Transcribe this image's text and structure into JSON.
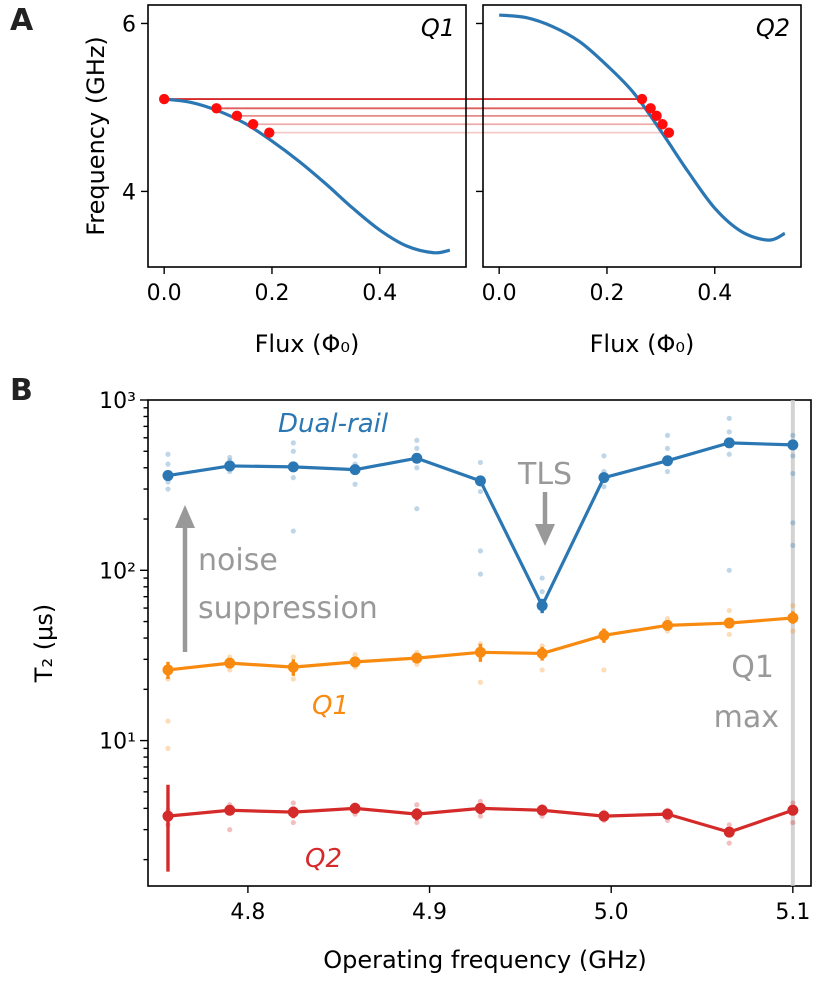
{
  "panel_labels": {
    "a": "A",
    "b": "B"
  },
  "colors": {
    "blue": "#2a77b4",
    "orange": "#f98a10",
    "red": "#d42a29",
    "gray": "#999999",
    "dot": "#ff0d0d"
  },
  "chart_data": [
    {
      "type": "line",
      "panel": "A-left",
      "title": "Q1",
      "xlabel": "Flux (Φ₀)",
      "ylabel": "Frequency (GHz)",
      "xlim": [
        -0.03,
        0.56
      ],
      "ylim": [
        3.1,
        6.22
      ],
      "xticks": [
        0.0,
        0.2,
        0.4
      ],
      "xtick_labels": [
        "0.0",
        "0.2",
        "0.4"
      ],
      "yticks": [
        4,
        6
      ],
      "ytick_labels": [
        "4",
        "6"
      ],
      "curve": {
        "x": [
          0.0,
          0.05,
          0.1,
          0.15,
          0.2,
          0.25,
          0.3,
          0.35,
          0.4,
          0.45,
          0.5,
          0.53
        ],
        "y": [
          5.1,
          5.06,
          4.96,
          4.81,
          4.6,
          4.36,
          4.09,
          3.8,
          3.54,
          3.35,
          3.27,
          3.3
        ]
      },
      "markers": {
        "x": [
          0.0,
          0.097,
          0.135,
          0.165,
          0.195
        ],
        "y": [
          5.1,
          4.99,
          4.9,
          4.8,
          4.7
        ]
      }
    },
    {
      "type": "line",
      "panel": "A-right",
      "title": "Q2",
      "xlabel": "Flux (Φ₀)",
      "xlim": [
        -0.03,
        0.56
      ],
      "ylim": [
        3.1,
        6.22
      ],
      "xticks": [
        0.0,
        0.2,
        0.4
      ],
      "xtick_labels": [
        "0.0",
        "0.2",
        "0.4"
      ],
      "curve": {
        "x": [
          0.0,
          0.05,
          0.1,
          0.15,
          0.2,
          0.25,
          0.3,
          0.35,
          0.4,
          0.45,
          0.5,
          0.53
        ],
        "y": [
          6.1,
          6.07,
          5.96,
          5.78,
          5.5,
          5.17,
          4.72,
          4.24,
          3.8,
          3.52,
          3.42,
          3.5
        ]
      },
      "markers": {
        "x": [
          0.265,
          0.281,
          0.292,
          0.303,
          0.315
        ],
        "y": [
          5.1,
          4.99,
          4.9,
          4.8,
          4.7
        ]
      }
    },
    {
      "type": "line",
      "panel": "B",
      "scale": "log",
      "xlabel": "Operating frequency (GHz)",
      "ylabel": "T₂ (μs)",
      "xlim": [
        4.745,
        5.11
      ],
      "ylim": [
        1.4,
        1000
      ],
      "xticks": [
        4.8,
        4.9,
        5.0,
        5.1
      ],
      "xtick_labels": [
        "4.8",
        "4.9",
        "5.0",
        "5.1"
      ],
      "ytick_labels": [
        "10¹",
        "10²",
        "10³"
      ],
      "x": [
        4.756,
        4.79,
        4.825,
        4.859,
        4.893,
        4.928,
        4.962,
        4.996,
        5.031,
        5.065,
        5.1
      ],
      "series": [
        {
          "name": "Dual-rail",
          "values": [
            360,
            410,
            405,
            390,
            455,
            335,
            62,
            350,
            440,
            560,
            545
          ],
          "err_low": [
            0,
            0,
            0,
            0,
            0,
            0,
            6,
            0,
            0,
            0,
            0
          ],
          "err_high": [
            0,
            0,
            0,
            0,
            0,
            0,
            6,
            0,
            0,
            0,
            0
          ]
        },
        {
          "name": "Q1",
          "values": [
            26,
            28.5,
            27,
            29,
            30.5,
            33,
            32.5,
            41.5,
            47.5,
            49,
            52.5
          ],
          "err_low": [
            3,
            1.5,
            3,
            1.5,
            1.5,
            4,
            3,
            4,
            2,
            3,
            4
          ],
          "err_high": [
            3,
            1.5,
            3,
            1.5,
            1.5,
            4,
            3,
            4,
            2,
            3,
            5
          ]
        },
        {
          "name": "Q2",
          "values": [
            3.6,
            3.9,
            3.8,
            4.0,
            3.7,
            4.0,
            3.9,
            3.6,
            3.7,
            2.9,
            3.9
          ],
          "err_low": [
            1.9,
            0.15,
            0.3,
            0.15,
            0.3,
            0.3,
            0.15,
            0.1,
            0.1,
            0.1,
            0.2
          ],
          "err_high": [
            1.9,
            0.15,
            0.3,
            0.15,
            0.3,
            0.3,
            0.15,
            0.1,
            0.1,
            0.1,
            0.2
          ]
        }
      ],
      "scatter_points": {
        "Dual-rail": [
          [
            4.756,
            300
          ],
          [
            4.756,
            330
          ],
          [
            4.756,
            420
          ],
          [
            4.756,
            480
          ],
          [
            4.79,
            380
          ],
          [
            4.79,
            440
          ],
          [
            4.79,
            460
          ],
          [
            4.825,
            170
          ],
          [
            4.825,
            350
          ],
          [
            4.825,
            500
          ],
          [
            4.825,
            560
          ],
          [
            4.859,
            320
          ],
          [
            4.859,
            420
          ],
          [
            4.859,
            470
          ],
          [
            4.893,
            230
          ],
          [
            4.893,
            400
          ],
          [
            4.893,
            520
          ],
          [
            4.893,
            580
          ],
          [
            4.928,
            130
          ],
          [
            4.928,
            95
          ],
          [
            4.928,
            290
          ],
          [
            4.928,
            430
          ],
          [
            4.962,
            60
          ],
          [
            4.962,
            75
          ],
          [
            4.962,
            90
          ],
          [
            4.996,
            310
          ],
          [
            4.996,
            380
          ],
          [
            4.996,
            470
          ],
          [
            5.031,
            380
          ],
          [
            5.031,
            520
          ],
          [
            5.031,
            620
          ],
          [
            5.065,
            100
          ],
          [
            5.065,
            480
          ],
          [
            5.065,
            650
          ],
          [
            5.065,
            780
          ],
          [
            5.1,
            190
          ],
          [
            5.1,
            370
          ],
          [
            5.1,
            470
          ],
          [
            5.1,
            620
          ],
          [
            5.1,
            140
          ]
        ],
        "Q1": [
          [
            4.756,
            13
          ],
          [
            4.756,
            9
          ],
          [
            4.756,
            23
          ],
          [
            4.79,
            26
          ],
          [
            4.79,
            31
          ],
          [
            4.825,
            23
          ],
          [
            4.825,
            31
          ],
          [
            4.859,
            27
          ],
          [
            4.859,
            32
          ],
          [
            4.893,
            28
          ],
          [
            4.893,
            33
          ],
          [
            4.928,
            22
          ],
          [
            4.928,
            37
          ],
          [
            4.962,
            26
          ],
          [
            4.962,
            36
          ],
          [
            4.996,
            26
          ],
          [
            4.996,
            44
          ],
          [
            5.031,
            44
          ],
          [
            5.031,
            52
          ],
          [
            5.065,
            42
          ],
          [
            5.065,
            58
          ],
          [
            5.1,
            44
          ],
          [
            5.1,
            62
          ]
        ],
        "Q2": [
          [
            4.756,
            3.2
          ],
          [
            4.756,
            3.9
          ],
          [
            4.79,
            3.0
          ],
          [
            4.79,
            4.2
          ],
          [
            4.825,
            3.3
          ],
          [
            4.825,
            4.3
          ],
          [
            4.859,
            3.7
          ],
          [
            4.859,
            4.2
          ],
          [
            4.893,
            3.3
          ],
          [
            4.893,
            4.2
          ],
          [
            4.928,
            3.6
          ],
          [
            4.928,
            4.4
          ],
          [
            4.962,
            3.6
          ],
          [
            4.962,
            4.1
          ],
          [
            4.996,
            3.4
          ],
          [
            4.996,
            3.8
          ],
          [
            5.031,
            3.4
          ],
          [
            5.031,
            3.9
          ],
          [
            5.065,
            2.5
          ],
          [
            5.065,
            3.2
          ],
          [
            5.1,
            3.3
          ],
          [
            5.1,
            4.3
          ]
        ]
      },
      "annotations": {
        "noise": "noise",
        "suppression": "suppression",
        "tls": "TLS",
        "q1max_line1": "Q1",
        "q1max_line2": "max",
        "label_dual": "Dual-rail",
        "label_q1": "Q1",
        "label_q2": "Q2"
      }
    }
  ]
}
